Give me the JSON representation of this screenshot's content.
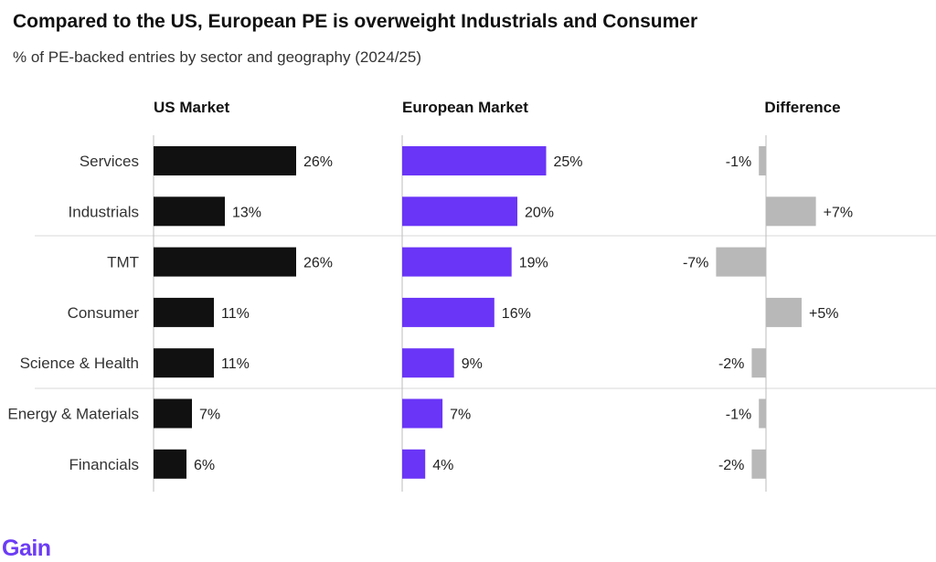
{
  "title": "Compared to the US, European PE is overweight Industrials and Consumer",
  "subtitle": "% of PE-backed entries by sector and geography (2024/25)",
  "logo": "Gain",
  "colors": {
    "us": "#111111",
    "europe": "#6a35f7",
    "difference": "#b8b8b8"
  },
  "chart_data": {
    "type": "bar",
    "orientation": "horizontal",
    "categories": [
      "Services",
      "Industrials",
      "TMT",
      "Consumer",
      "Science & Health",
      "Energy & Materials",
      "Financials"
    ],
    "panels": [
      {
        "name": "US Market",
        "values": [
          26,
          13,
          26,
          11,
          11,
          7,
          6
        ],
        "labels": [
          "26%",
          "13%",
          "26%",
          "11%",
          "11%",
          "7%",
          "6%"
        ]
      },
      {
        "name": "European Market",
        "values": [
          25,
          20,
          19,
          16,
          9,
          7,
          4
        ],
        "labels": [
          "25%",
          "20%",
          "19%",
          "16%",
          "9%",
          "7%",
          "4%"
        ]
      },
      {
        "name": "Difference",
        "values": [
          -1,
          7,
          -7,
          5,
          -2,
          -1,
          -2
        ],
        "labels": [
          "-1%",
          "+7%",
          "-7%",
          "+5%",
          "-2%",
          "-1%",
          "-2%"
        ]
      }
    ],
    "unit": "%"
  }
}
